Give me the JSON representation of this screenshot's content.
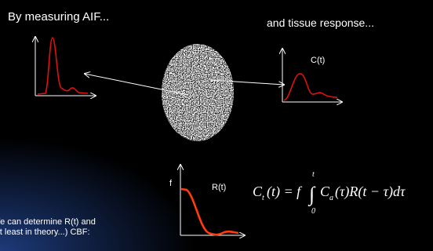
{
  "slide": {
    "heading_left": "By measuring AIF...",
    "heading_right": "and tissue response...",
    "tissue_plot_label": "C(t)",
    "residue_plot_y_label": "f",
    "residue_plot_label": "R(t)",
    "formula": {
      "lhs": "C",
      "lhs_sub": "t",
      "lhs_rest": "(t) = f",
      "integral": "∫",
      "upper": "t",
      "lower": "0",
      "term": "C",
      "term_sub": "a",
      "term_rest": "(τ)R(t − τ)dτ"
    },
    "conclusion": [
      "We can determine R(t) and",
      "(at least in theory...) CBF:"
    ]
  }
}
